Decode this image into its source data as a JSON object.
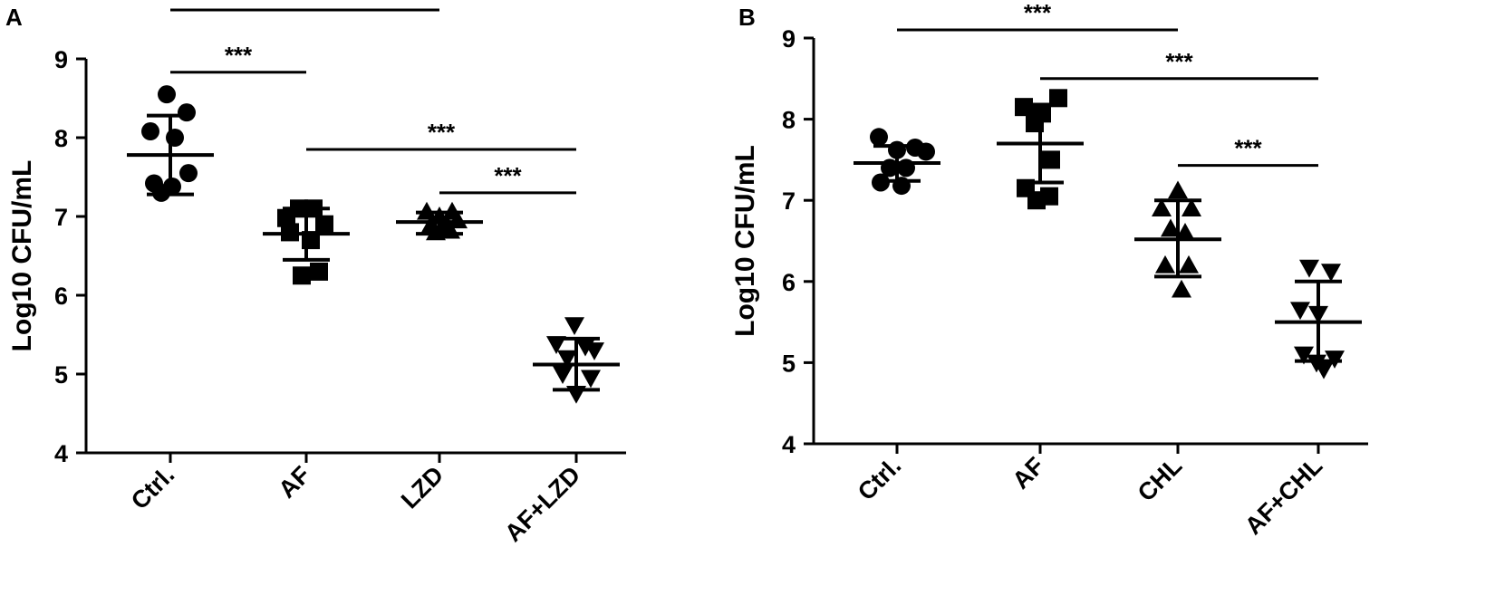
{
  "chart_data": [
    {
      "type": "scatter",
      "panel": "A",
      "ylabel": "Log10 CFU/mL",
      "ylim": [
        4,
        9
      ],
      "yticks": [
        4,
        5,
        6,
        7,
        8,
        9
      ],
      "categories": [
        "Ctrl.",
        "AF",
        "LZD",
        "AF+LZD"
      ],
      "markers": [
        "circle",
        "square",
        "triangle-up",
        "triangle-down"
      ],
      "groups": [
        {
          "name": "Ctrl.",
          "mean": 7.78,
          "sd_low": 7.28,
          "sd_high": 8.28,
          "points": [
            [
              -0.04,
              8.55
            ],
            [
              0.18,
              8.32
            ],
            [
              -0.22,
              8.08
            ],
            [
              0.05,
              8.0
            ],
            [
              -0.18,
              7.42
            ],
            [
              0.02,
              7.38
            ],
            [
              0.2,
              7.55
            ],
            [
              -0.1,
              7.3
            ]
          ]
        },
        {
          "name": "AF",
          "mean": 6.78,
          "sd_low": 6.45,
          "sd_high": 7.1,
          "points": [
            [
              -0.22,
              6.98
            ],
            [
              -0.08,
              7.1
            ],
            [
              0.08,
              7.1
            ],
            [
              0.2,
              6.9
            ],
            [
              -0.18,
              6.8
            ],
            [
              0.05,
              6.7
            ],
            [
              -0.05,
              6.25
            ],
            [
              0.14,
              6.3
            ]
          ]
        },
        {
          "name": "LZD",
          "mean": 6.93,
          "sd_low": 6.78,
          "sd_high": 7.05,
          "points": [
            [
              -0.14,
              7.06
            ],
            [
              0.0,
              7.0
            ],
            [
              0.14,
              7.06
            ],
            [
              -0.1,
              6.88
            ],
            [
              0.08,
              6.9
            ],
            [
              -0.04,
              6.8
            ],
            [
              0.12,
              6.82
            ],
            [
              0.2,
              6.95
            ]
          ]
        },
        {
          "name": "AF+LZD",
          "mean": 5.12,
          "sd_low": 4.8,
          "sd_high": 5.45,
          "points": [
            [
              -0.02,
              5.62
            ],
            [
              -0.22,
              5.38
            ],
            [
              0.1,
              5.35
            ],
            [
              0.2,
              5.3
            ],
            [
              -0.1,
              5.2
            ],
            [
              -0.15,
              5.0
            ],
            [
              0.16,
              4.95
            ],
            [
              0.0,
              4.75
            ]
          ]
        }
      ],
      "significance": [
        {
          "from": 0,
          "to": 2,
          "label": "***",
          "y": 9.62
        },
        {
          "from": 0,
          "to": 1,
          "label": "***",
          "y": 8.83
        },
        {
          "from": 1,
          "to": 3,
          "label": "***",
          "y": 7.85
        },
        {
          "from": 2,
          "to": 3,
          "label": "***",
          "y": 7.3
        }
      ]
    },
    {
      "type": "scatter",
      "panel": "B",
      "ylabel": "Log10 CFU/mL",
      "ylim": [
        4,
        9
      ],
      "yticks": [
        4,
        5,
        6,
        7,
        8,
        9
      ],
      "categories": [
        "Ctrl.",
        "AF",
        "CHL",
        "AF+CHL"
      ],
      "markers": [
        "circle",
        "square",
        "triangle-up",
        "triangle-down"
      ],
      "groups": [
        {
          "name": "Ctrl.",
          "mean": 7.46,
          "sd_low": 7.24,
          "sd_high": 7.67,
          "points": [
            [
              -0.2,
              7.78
            ],
            [
              0.0,
              7.62
            ],
            [
              0.2,
              7.65
            ],
            [
              0.32,
              7.6
            ],
            [
              -0.08,
              7.4
            ],
            [
              0.1,
              7.4
            ],
            [
              -0.18,
              7.22
            ],
            [
              0.05,
              7.18
            ]
          ]
        },
        {
          "name": "AF",
          "mean": 7.7,
          "sd_low": 7.22,
          "sd_high": 8.18,
          "points": [
            [
              -0.18,
              8.15
            ],
            [
              0.2,
              8.26
            ],
            [
              0.02,
              8.07
            ],
            [
              -0.06,
              7.95
            ],
            [
              0.12,
              7.5
            ],
            [
              -0.16,
              7.15
            ],
            [
              0.1,
              7.05
            ],
            [
              -0.04,
              7.0
            ]
          ]
        },
        {
          "name": "CHL",
          "mean": 6.52,
          "sd_low": 6.06,
          "sd_high": 7.0,
          "points": [
            [
              0.0,
              7.12
            ],
            [
              -0.18,
              6.9
            ],
            [
              0.15,
              6.9
            ],
            [
              -0.08,
              6.65
            ],
            [
              0.08,
              6.6
            ],
            [
              -0.14,
              6.2
            ],
            [
              0.12,
              6.2
            ],
            [
              0.04,
              5.9
            ]
          ]
        },
        {
          "name": "AF+CHL",
          "mean": 5.5,
          "sd_low": 5.02,
          "sd_high": 6.0,
          "points": [
            [
              -0.1,
              6.17
            ],
            [
              0.14,
              6.12
            ],
            [
              -0.2,
              5.65
            ],
            [
              0.0,
              5.6
            ],
            [
              -0.16,
              5.1
            ],
            [
              0.18,
              5.05
            ],
            [
              -0.02,
              5.0
            ],
            [
              0.06,
              4.92
            ]
          ]
        }
      ],
      "significance": [
        {
          "from": 0,
          "to": 2,
          "label": "***",
          "y": 9.1
        },
        {
          "from": 1,
          "to": 3,
          "label": "***",
          "y": 8.5
        },
        {
          "from": 2,
          "to": 3,
          "label": "***",
          "y": 7.43
        }
      ]
    }
  ]
}
